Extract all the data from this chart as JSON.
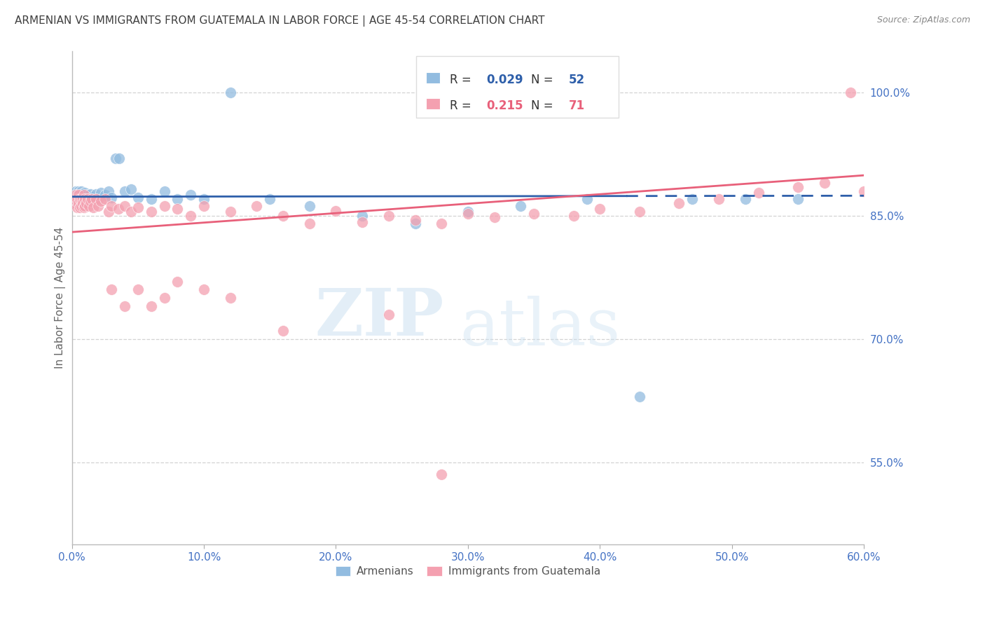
{
  "title": "ARMENIAN VS IMMIGRANTS FROM GUATEMALA IN LABOR FORCE | AGE 45-54 CORRELATION CHART",
  "source": "Source: ZipAtlas.com",
  "ylabel": "In Labor Force | Age 45-54",
  "x_ticks": [
    "0.0%",
    "10.0%",
    "20.0%",
    "30.0%",
    "40.0%",
    "50.0%",
    "60.0%"
  ],
  "x_tick_vals": [
    0.0,
    0.1,
    0.2,
    0.3,
    0.4,
    0.5,
    0.6
  ],
  "y_ticks_right": [
    "100.0%",
    "85.0%",
    "70.0%",
    "55.0%"
  ],
  "y_tick_vals_right": [
    1.0,
    0.85,
    0.7,
    0.55
  ],
  "xlim": [
    0.0,
    0.6
  ],
  "ylim": [
    0.45,
    1.05
  ],
  "legend_armenian_r": "0.029",
  "legend_armenian_n": "52",
  "legend_guatemala_r": "0.215",
  "legend_guatemala_n": "71",
  "armenian_color": "#92bce0",
  "guatemala_color": "#f4a0b0",
  "blue_line_color": "#2e5faa",
  "pink_line_color": "#e8607a",
  "watermark_zip": "ZIP",
  "watermark_atlas": "atlas",
  "background_color": "#ffffff",
  "grid_color": "#cccccc",
  "axis_color": "#4472c4",
  "title_color": "#404040",
  "arm_x": [
    0.002,
    0.003,
    0.003,
    0.004,
    0.004,
    0.005,
    0.005,
    0.005,
    0.006,
    0.006,
    0.007,
    0.007,
    0.008,
    0.008,
    0.009,
    0.009,
    0.01,
    0.01,
    0.011,
    0.012,
    0.013,
    0.014,
    0.015,
    0.016,
    0.018,
    0.02,
    0.022,
    0.025,
    0.028,
    0.03,
    0.033,
    0.036,
    0.04,
    0.045,
    0.05,
    0.06,
    0.07,
    0.08,
    0.09,
    0.1,
    0.12,
    0.15,
    0.18,
    0.22,
    0.26,
    0.3,
    0.34,
    0.39,
    0.43,
    0.47,
    0.51,
    0.55
  ],
  "arm_y": [
    0.87,
    0.875,
    0.88,
    0.865,
    0.875,
    0.87,
    0.88,
    0.875,
    0.87,
    0.878,
    0.872,
    0.88,
    0.87,
    0.877,
    0.87,
    0.876,
    0.87,
    0.878,
    0.872,
    0.875,
    0.87,
    0.876,
    0.873,
    0.87,
    0.876,
    0.87,
    0.878,
    0.875,
    0.88,
    0.872,
    0.92,
    0.92,
    0.88,
    0.882,
    0.872,
    0.87,
    0.88,
    0.87,
    0.875,
    0.87,
    1.0,
    0.87,
    0.862,
    0.85,
    0.84,
    0.855,
    0.862,
    0.87,
    0.63,
    0.87,
    0.87,
    0.87
  ],
  "guat_x": [
    0.002,
    0.003,
    0.003,
    0.004,
    0.004,
    0.005,
    0.005,
    0.006,
    0.006,
    0.007,
    0.007,
    0.008,
    0.008,
    0.009,
    0.009,
    0.01,
    0.01,
    0.011,
    0.012,
    0.013,
    0.014,
    0.015,
    0.016,
    0.018,
    0.02,
    0.022,
    0.025,
    0.028,
    0.03,
    0.035,
    0.04,
    0.045,
    0.05,
    0.06,
    0.07,
    0.08,
    0.09,
    0.1,
    0.12,
    0.14,
    0.16,
    0.18,
    0.2,
    0.22,
    0.24,
    0.26,
    0.28,
    0.3,
    0.32,
    0.35,
    0.38,
    0.4,
    0.43,
    0.46,
    0.49,
    0.52,
    0.55,
    0.57,
    0.59,
    0.6,
    0.28,
    0.16,
    0.24,
    0.12,
    0.1,
    0.08,
    0.07,
    0.06,
    0.05,
    0.04,
    0.03
  ],
  "guat_y": [
    0.87,
    0.865,
    0.875,
    0.87,
    0.86,
    0.875,
    0.865,
    0.87,
    0.86,
    0.87,
    0.862,
    0.87,
    0.865,
    0.875,
    0.86,
    0.87,
    0.862,
    0.865,
    0.87,
    0.862,
    0.868,
    0.87,
    0.86,
    0.87,
    0.862,
    0.868,
    0.87,
    0.855,
    0.862,
    0.858,
    0.862,
    0.855,
    0.86,
    0.855,
    0.862,
    0.858,
    0.85,
    0.862,
    0.855,
    0.862,
    0.85,
    0.84,
    0.856,
    0.842,
    0.85,
    0.845,
    0.84,
    0.852,
    0.848,
    0.852,
    0.85,
    0.858,
    0.855,
    0.865,
    0.87,
    0.878,
    0.885,
    0.89,
    1.0,
    0.88,
    0.535,
    0.71,
    0.73,
    0.75,
    0.76,
    0.77,
    0.75,
    0.74,
    0.76,
    0.74,
    0.76
  ]
}
